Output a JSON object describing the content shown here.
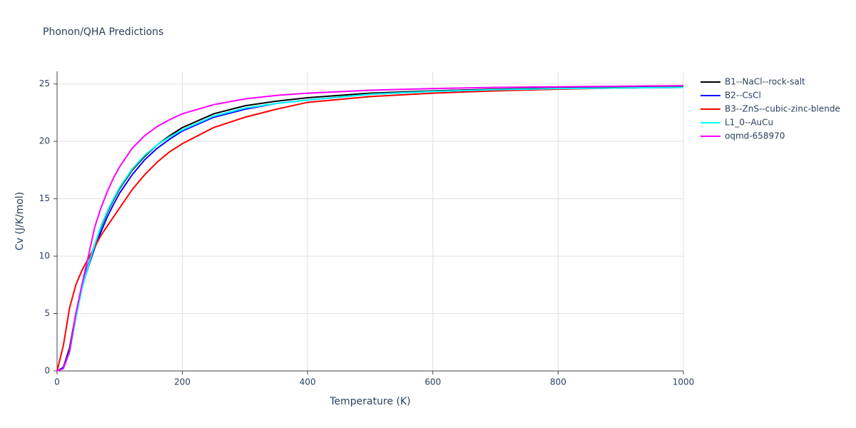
{
  "chart_data": {
    "type": "line",
    "title": "Phonon/QHA Predictions",
    "x_label": "Temperature (K)",
    "y_label": "Cv (J/K/mol)",
    "x": [
      0,
      10,
      20,
      30,
      40,
      50,
      60,
      70,
      80,
      90,
      100,
      120,
      140,
      160,
      180,
      200,
      250,
      300,
      350,
      400,
      500,
      600,
      700,
      800,
      900,
      1000
    ],
    "series": [
      {
        "name": "B1--NaCl--rock-salt",
        "color": "#000000",
        "values": [
          0,
          0.3,
          2,
          5,
          7.5,
          9.3,
          11,
          12.5,
          13.8,
          14.9,
          15.9,
          17.5,
          18.7,
          19.7,
          20.5,
          21.2,
          22.4,
          23.1,
          23.5,
          23.8,
          24.2,
          24.4,
          24.55,
          24.65,
          24.7,
          24.75
        ]
      },
      {
        "name": "B2--CsCl",
        "color": "#0000ff",
        "values": [
          0,
          0.3,
          1.8,
          4.8,
          7.3,
          9.1,
          10.7,
          12.1,
          13.4,
          14.5,
          15.5,
          17.1,
          18.4,
          19.4,
          20.2,
          20.9,
          22.1,
          22.8,
          23.3,
          23.6,
          24.1,
          24.35,
          24.5,
          24.6,
          24.65,
          24.7
        ]
      },
      {
        "name": "B3--ZnS--cubic-zinc-blende",
        "color": "#ff0000",
        "values": [
          0,
          2.2,
          5.5,
          7.5,
          8.8,
          9.8,
          10.8,
          11.8,
          12.6,
          13.4,
          14.2,
          15.8,
          17.1,
          18.2,
          19.1,
          19.8,
          21.2,
          22.1,
          22.8,
          23.4,
          23.9,
          24.2,
          24.4,
          24.55,
          24.65,
          24.7
        ]
      },
      {
        "name": "L1_0--AuCu",
        "color": "#00ffff",
        "values": [
          0,
          0.2,
          1.6,
          4.6,
          7.2,
          9.2,
          11,
          12.6,
          13.9,
          15,
          16,
          17.6,
          18.8,
          19.7,
          20.4,
          21,
          22.2,
          22.9,
          23.3,
          23.6,
          24.1,
          24.35,
          24.5,
          24.6,
          24.65,
          24.7
        ]
      },
      {
        "name": "oqmd-658970",
        "color": "#ff00ff",
        "values": [
          0,
          0.2,
          1.7,
          5,
          7.6,
          10,
          12.5,
          14.2,
          15.6,
          16.8,
          17.8,
          19.4,
          20.5,
          21.3,
          21.9,
          22.4,
          23.2,
          23.7,
          24,
          24.2,
          24.45,
          24.6,
          24.7,
          24.75,
          24.8,
          24.85
        ]
      }
    ],
    "xlim": [
      0,
      1000
    ],
    "xticks": [
      0,
      200,
      400,
      600,
      800,
      1000
    ],
    "ylim": [
      0,
      26.1
    ],
    "yticks": [
      0,
      5,
      10,
      15,
      20,
      25
    ],
    "grid": true,
    "legend": "right"
  }
}
